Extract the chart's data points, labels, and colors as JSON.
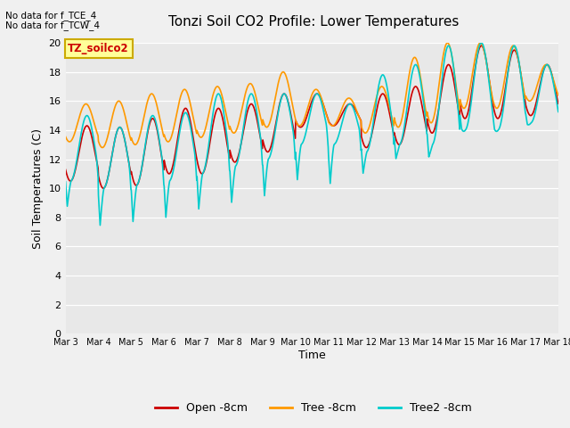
{
  "title": "Tonzi Soil CO2 Profile: Lower Temperatures",
  "xlabel": "Time",
  "ylabel": "Soil Temperatures (C)",
  "ylim": [
    0,
    20
  ],
  "yticks": [
    0,
    2,
    4,
    6,
    8,
    10,
    12,
    14,
    16,
    18,
    20
  ],
  "bg_color": "#e8e8e8",
  "fig_color": "#f0f0f0",
  "no_data_text1": "No data for f_TCE_4",
  "no_data_text2": "No data for f_TCW_4",
  "label_box_text": "TZ_soilco2",
  "label_box_color": "#ffff99",
  "label_box_border": "#ccaa00",
  "label_box_text_color": "#cc0000",
  "open_color": "#cc0000",
  "tree_color": "#ff9900",
  "tree2_color": "#00cccc",
  "open_label": "Open -8cm",
  "tree_label": "Tree -8cm",
  "tree2_label": "Tree2 -8cm",
  "x_tick_labels": [
    "Mar 3",
    "Mar 4",
    "Mar 5",
    "Mar 6",
    "Mar 7",
    "Mar 8",
    "Mar 9",
    "Mar 10",
    "Mar 11",
    "Mar 12",
    "Mar 13",
    "Mar 14",
    "Mar 15",
    "Mar 16",
    "Mar 17",
    "Mar 18"
  ],
  "n_days": 15,
  "pts_per_day": 96,
  "open_mins": [
    10.5,
    10.0,
    10.2,
    11.0,
    11.0,
    11.8,
    12.5,
    14.2,
    14.3,
    12.8,
    13.0,
    13.8,
    14.8,
    14.8,
    15.0
  ],
  "open_maxs": [
    14.3,
    14.2,
    14.8,
    15.5,
    15.5,
    15.8,
    16.5,
    16.5,
    15.8,
    16.5,
    17.0,
    18.5,
    19.8,
    19.5,
    18.5
  ],
  "tree_mins": [
    13.2,
    12.8,
    13.0,
    13.2,
    13.5,
    13.8,
    14.2,
    14.3,
    14.3,
    13.8,
    14.2,
    14.5,
    15.5,
    15.5,
    16.0
  ],
  "tree_maxs": [
    15.8,
    16.0,
    16.5,
    16.8,
    17.0,
    17.2,
    18.0,
    16.8,
    16.2,
    17.0,
    19.0,
    20.0,
    20.0,
    19.8,
    18.5
  ],
  "tree2_mins_night": [
    8.3,
    7.0,
    7.2,
    7.5,
    8.0,
    8.5,
    9.0,
    10.2,
    10.0,
    10.5,
    11.5,
    11.5,
    13.5,
    13.5,
    14.0
  ],
  "tree2_maxs": [
    15.0,
    14.2,
    15.0,
    15.2,
    16.5,
    16.5,
    16.5,
    16.5,
    15.8,
    17.8,
    18.5,
    19.8,
    20.0,
    19.8,
    18.5
  ],
  "tree2_mins_day": [
    10.5,
    10.0,
    10.2,
    10.5,
    11.0,
    11.5,
    12.0,
    13.0,
    13.0,
    12.5,
    13.0,
    13.0,
    14.0,
    14.0,
    14.5
  ]
}
